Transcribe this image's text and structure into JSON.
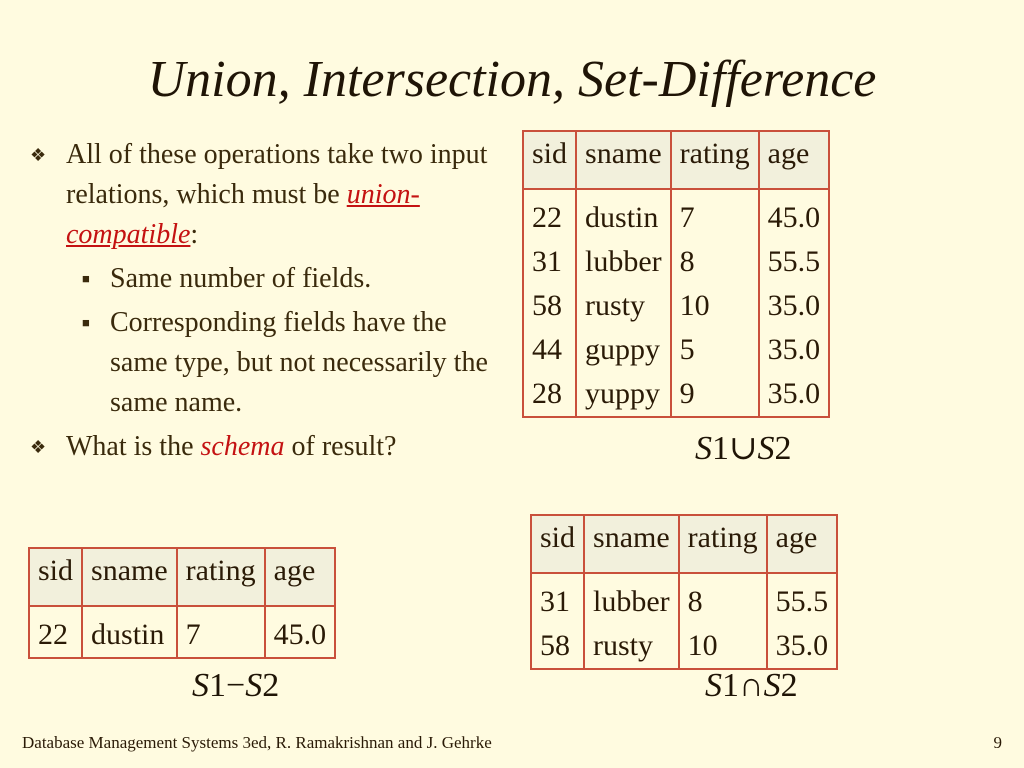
{
  "title": "Union, Intersection, Set-Difference",
  "bullets": {
    "b1_pre": "All of these operations take two input relations, which must be ",
    "b1_term": "union-compatible",
    "b1_post": ":",
    "sub1": "Same number of fields.",
    "sub2": "Corresponding fields have the same type, but not necessarily the same name.",
    "b2_pre": "What is the ",
    "b2_term": "schema",
    "b2_post": " of result?"
  },
  "tables": {
    "union": {
      "headers": [
        "sid",
        "sname",
        "rating",
        "age"
      ],
      "rows": [
        [
          "22",
          "dustin",
          "7",
          "45.0"
        ],
        [
          "31",
          "lubber",
          "8",
          "55.5"
        ],
        [
          "58",
          "rusty",
          "10",
          "35.0"
        ],
        [
          "44",
          "guppy",
          "5",
          "35.0"
        ],
        [
          "28",
          "yuppy",
          "9",
          "35.0"
        ]
      ],
      "caption": {
        "a": "S",
        "n1": "1",
        "op": "∪",
        "b": "S",
        "n2": "2"
      }
    },
    "intersection": {
      "headers": [
        "sid",
        "sname",
        "rating",
        "age"
      ],
      "rows": [
        [
          "31",
          "lubber",
          "8",
          "55.5"
        ],
        [
          "58",
          "rusty",
          "10",
          "35.0"
        ]
      ],
      "caption": {
        "a": "S",
        "n1": "1",
        "op": "∩",
        "b": "S",
        "n2": "2"
      }
    },
    "difference": {
      "headers": [
        "sid",
        "sname",
        "rating",
        "age"
      ],
      "rows": [
        [
          "22",
          "dustin",
          "7",
          "45.0"
        ]
      ],
      "caption": {
        "a": "S",
        "n1": "1",
        "op": "−",
        "b": "S",
        "n2": "2"
      }
    }
  },
  "footer": {
    "text": "Database Management Systems 3ed,  R. Ramakrishnan and J. Gehrke",
    "page": "9"
  }
}
